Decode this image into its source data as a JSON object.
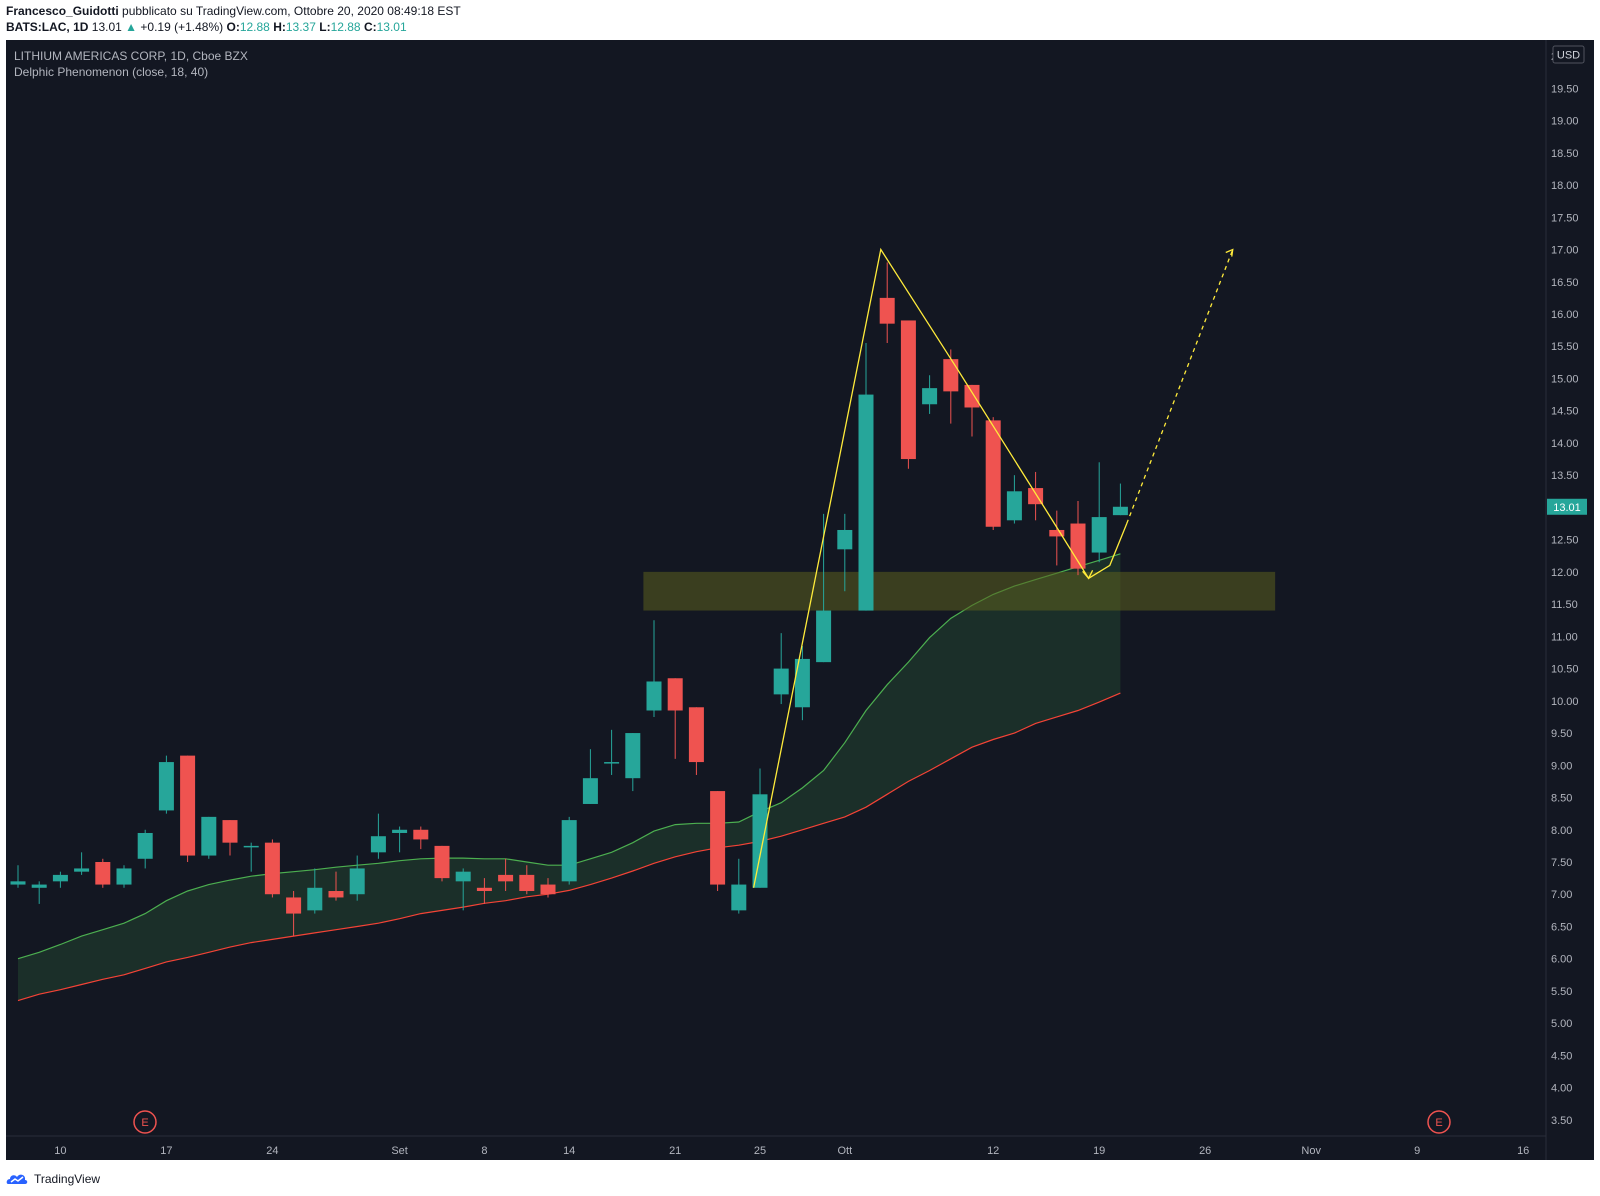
{
  "header": {
    "publisher": "Francesco_Guidotti",
    "published_text": " pubblicato su TradingView.com, Ottobre 20, 2020 08:49:18 EST",
    "symbol": "BATS:LAC, 1D",
    "last": "13.01",
    "change_arrow": "▲",
    "change": "+0.19 (+1.48%)",
    "o_label": "O:",
    "o": "12.88",
    "h_label": "H:",
    "h": "13.37",
    "l_label": "L:",
    "l": "12.88",
    "c_label": "C:",
    "c": "13.01"
  },
  "legend": {
    "title": "LITHIUM AMERICAS CORP, 1D, Cboe BZX",
    "indicator": "Delphic Phenomenon (close, 18, 40)"
  },
  "currency": "USD",
  "price_tag": "13.01",
  "earnings_marker": "E",
  "brand": "TradingView",
  "colors": {
    "background": "#131722",
    "up": "#26a69a",
    "down": "#ef5350",
    "fast_line": "#4caf50",
    "slow_line": "#f44336",
    "zone": "#5b5f1e",
    "pattern": "#ffeb3b"
  },
  "chart_data": {
    "type": "candlestick",
    "y_range": [
      3.25,
      20.25
    ],
    "y_ticks": [
      "3.50",
      "4.00",
      "4.50",
      "5.00",
      "5.50",
      "6.00",
      "6.50",
      "7.00",
      "7.50",
      "8.00",
      "8.50",
      "9.00",
      "9.50",
      "10.00",
      "10.50",
      "11.00",
      "11.50",
      "12.00",
      "12.50",
      "13.00",
      "13.50",
      "14.00",
      "14.50",
      "15.00",
      "15.50",
      "16.00",
      "16.50",
      "17.00",
      "17.50",
      "18.00",
      "18.50",
      "19.00",
      "19.50",
      "20.00"
    ],
    "x_ticks": [
      {
        "i": 2,
        "label": "10"
      },
      {
        "i": 7,
        "label": "17"
      },
      {
        "i": 12,
        "label": "24"
      },
      {
        "i": 18,
        "label": "Set"
      },
      {
        "i": 22,
        "label": "8"
      },
      {
        "i": 26,
        "label": "14"
      },
      {
        "i": 31,
        "label": "21"
      },
      {
        "i": 35,
        "label": "25"
      },
      {
        "i": 39,
        "label": "Ott"
      },
      {
        "i": 46,
        "label": "12"
      },
      {
        "i": 51,
        "label": "19"
      },
      {
        "i": 56,
        "label": "26"
      },
      {
        "i": 61,
        "label": "Nov"
      },
      {
        "i": 66,
        "label": "9"
      },
      {
        "i": 71,
        "label": "16"
      }
    ],
    "candles": [
      [
        7.15,
        7.2,
        7.45,
        7.1
      ],
      [
        7.1,
        7.15,
        7.2,
        6.85
      ],
      [
        7.2,
        7.3,
        7.35,
        7.1
      ],
      [
        7.35,
        7.4,
        7.65,
        7.3
      ],
      [
        7.5,
        7.15,
        7.55,
        7.1
      ],
      [
        7.15,
        7.4,
        7.45,
        7.1
      ],
      [
        7.55,
        7.95,
        8.0,
        7.4
      ],
      [
        8.3,
        9.05,
        9.15,
        8.25
      ],
      [
        9.15,
        7.6,
        9.15,
        7.5
      ],
      [
        7.6,
        8.2,
        8.2,
        7.55
      ],
      [
        8.15,
        7.8,
        8.15,
        7.6
      ],
      [
        7.75,
        7.75,
        7.8,
        7.35
      ],
      [
        7.8,
        7.0,
        7.85,
        6.95
      ],
      [
        6.95,
        6.7,
        7.05,
        6.35
      ],
      [
        6.75,
        7.1,
        7.4,
        6.7
      ],
      [
        7.05,
        6.95,
        7.35,
        6.9
      ],
      [
        7.0,
        7.4,
        7.6,
        6.9
      ],
      [
        7.65,
        7.9,
        8.25,
        7.55
      ],
      [
        7.95,
        8.0,
        8.05,
        7.65
      ],
      [
        8.0,
        7.85,
        8.05,
        7.7
      ],
      [
        7.75,
        7.25,
        7.75,
        7.2
      ],
      [
        7.2,
        7.35,
        7.4,
        6.75
      ],
      [
        7.1,
        7.05,
        7.25,
        6.85
      ],
      [
        7.3,
        7.2,
        7.55,
        7.05
      ],
      [
        7.3,
        7.05,
        7.45,
        7.0
      ],
      [
        7.15,
        7.0,
        7.25,
        6.95
      ],
      [
        7.2,
        8.15,
        8.2,
        7.15
      ],
      [
        8.4,
        8.8,
        9.25,
        8.4
      ],
      [
        9.05,
        9.05,
        9.55,
        8.85
      ],
      [
        8.8,
        9.5,
        9.5,
        8.6
      ],
      [
        9.85,
        10.3,
        11.25,
        9.75
      ],
      [
        10.35,
        9.85,
        10.35,
        9.1
      ],
      [
        9.9,
        9.05,
        9.9,
        8.85
      ],
      [
        8.6,
        7.15,
        8.6,
        7.05
      ],
      [
        6.75,
        7.15,
        7.55,
        6.7
      ],
      [
        7.1,
        8.55,
        8.95,
        7.1
      ],
      [
        10.1,
        10.5,
        11.05,
        9.95
      ],
      [
        9.9,
        10.65,
        10.85,
        9.7
      ],
      [
        10.6,
        11.4,
        12.9,
        10.6
      ],
      [
        12.35,
        12.65,
        12.9,
        11.7
      ],
      [
        11.4,
        14.75,
        15.55,
        11.4
      ],
      [
        16.25,
        15.85,
        16.8,
        15.55
      ],
      [
        15.9,
        13.75,
        15.9,
        13.6
      ],
      [
        14.6,
        14.85,
        15.05,
        14.45
      ],
      [
        15.3,
        14.8,
        15.45,
        14.3
      ],
      [
        14.9,
        14.55,
        14.9,
        14.1
      ],
      [
        14.35,
        12.7,
        14.4,
        12.65
      ],
      [
        12.8,
        13.25,
        13.5,
        12.75
      ],
      [
        13.3,
        13.05,
        13.55,
        12.8
      ],
      [
        12.65,
        12.55,
        12.95,
        12.1
      ],
      [
        12.75,
        12.05,
        13.1,
        11.95
      ],
      [
        12.3,
        12.85,
        13.7,
        12.15
      ],
      [
        12.88,
        13.01,
        13.37,
        12.88
      ]
    ],
    "fast_line": [
      6.0,
      6.1,
      6.22,
      6.35,
      6.45,
      6.55,
      6.7,
      6.9,
      7.05,
      7.15,
      7.22,
      7.28,
      7.32,
      7.35,
      7.38,
      7.42,
      7.45,
      7.48,
      7.52,
      7.55,
      7.56,
      7.56,
      7.55,
      7.55,
      7.5,
      7.45,
      7.45,
      7.55,
      7.65,
      7.8,
      7.98,
      8.08,
      8.1,
      8.1,
      8.12,
      8.28,
      8.42,
      8.65,
      8.92,
      9.35,
      9.85,
      10.25,
      10.6,
      10.98,
      11.28,
      11.48,
      11.65,
      11.78,
      11.88,
      11.98,
      12.08,
      12.18,
      12.28
    ],
    "slow_line": [
      5.35,
      5.45,
      5.52,
      5.6,
      5.68,
      5.75,
      5.85,
      5.95,
      6.02,
      6.1,
      6.18,
      6.25,
      6.3,
      6.35,
      6.4,
      6.45,
      6.5,
      6.55,
      6.62,
      6.7,
      6.75,
      6.8,
      6.86,
      6.9,
      6.96,
      7.0,
      7.06,
      7.15,
      7.25,
      7.36,
      7.48,
      7.58,
      7.66,
      7.72,
      7.76,
      7.82,
      7.9,
      8.0,
      8.1,
      8.2,
      8.35,
      8.55,
      8.75,
      8.92,
      9.1,
      9.28,
      9.4,
      9.5,
      9.65,
      9.75,
      9.85,
      9.98,
      10.12
    ],
    "zone": {
      "i_start": 29.5,
      "i_end": 59.3,
      "low": 11.4,
      "high": 12.0
    },
    "pattern": [
      [
        34.7,
        7.1
      ],
      [
        40.7,
        17.0
      ],
      [
        44.3,
        15.15
      ],
      [
        48.7,
        12.85
      ],
      [
        50.5,
        11.9
      ],
      [
        51.5,
        12.1
      ],
      [
        52.3,
        12.75
      ]
    ],
    "projection": [
      [
        52.3,
        12.75
      ],
      [
        57.3,
        17.0
      ]
    ]
  }
}
